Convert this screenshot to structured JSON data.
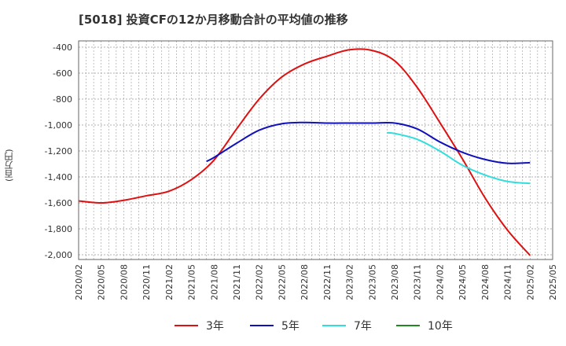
{
  "title": "[5018]  投資CFの12か月移動合計の平均値の推移",
  "ylabel": "(百万円)",
  "colors": {
    "3y": "#dd1111",
    "5y": "#1111bb",
    "7y": "#33dddd",
    "10y": "#228822",
    "grid": "#999999",
    "axis": "#666666"
  },
  "legend": [
    {
      "label": "3年",
      "color": "#dd1111"
    },
    {
      "label": "5年",
      "color": "#1111bb"
    },
    {
      "label": "7年",
      "color": "#33dddd"
    },
    {
      "label": "10年",
      "color": "#228822"
    }
  ],
  "chart_data": {
    "type": "line",
    "title": "[5018]  投資CFの12か月移動合計の平均値の推移",
    "ylabel": "(百万円)",
    "ylim": [
      -2000,
      -400
    ],
    "yticks": [
      -400,
      -600,
      -800,
      -1000,
      -1200,
      -1400,
      -1600,
      -1800,
      -2000
    ],
    "ytick_labels": [
      "-400",
      "-600",
      "-800",
      "-1,000",
      "-1,200",
      "-1,400",
      "-1,600",
      "-1,800",
      "-2,000"
    ],
    "xticks": [
      "2020/02",
      "2020/05",
      "2020/08",
      "2020/11",
      "2021/02",
      "2021/05",
      "2021/08",
      "2021/11",
      "2022/02",
      "2022/05",
      "2022/08",
      "2022/11",
      "2023/02",
      "2023/05",
      "2023/08",
      "2023/11",
      "2024/02",
      "2024/05",
      "2024/08",
      "2024/11",
      "2025/02",
      "2025/05"
    ],
    "grid": true,
    "legend_position": "bottom",
    "series": [
      {
        "name": "3年",
        "color": "#dd1111",
        "x": [
          "2020/02",
          "2020/05",
          "2020/08",
          "2020/11",
          "2021/02",
          "2021/05",
          "2021/08",
          "2021/11",
          "2022/02",
          "2022/05",
          "2022/08",
          "2022/11",
          "2023/02",
          "2023/05",
          "2023/08",
          "2023/11",
          "2024/02",
          "2024/05",
          "2024/08",
          "2024/11",
          "2025/02"
        ],
        "y": [
          -1585,
          -1600,
          -1580,
          -1545,
          -1510,
          -1420,
          -1270,
          -1030,
          -800,
          -630,
          -530,
          -470,
          -420,
          -425,
          -505,
          -710,
          -980,
          -1260,
          -1560,
          -1810,
          -2005
        ]
      },
      {
        "name": "5年",
        "color": "#1111bb",
        "x": [
          "2021/07",
          "2021/08",
          "2021/11",
          "2022/02",
          "2022/05",
          "2022/08",
          "2022/11",
          "2023/02",
          "2023/05",
          "2023/08",
          "2023/11",
          "2024/02",
          "2024/05",
          "2024/08",
          "2024/11",
          "2025/02"
        ],
        "y": [
          -1280,
          -1250,
          -1140,
          -1040,
          -990,
          -980,
          -985,
          -985,
          -985,
          -985,
          -1030,
          -1130,
          -1210,
          -1265,
          -1295,
          -1290
        ]
      },
      {
        "name": "7年",
        "color": "#33dddd",
        "x": [
          "2023/07",
          "2023/08",
          "2023/11",
          "2024/02",
          "2024/05",
          "2024/08",
          "2024/11",
          "2025/02"
        ],
        "y": [
          -1060,
          -1065,
          -1110,
          -1200,
          -1310,
          -1385,
          -1435,
          -1450
        ]
      },
      {
        "name": "10年",
        "color": "#228822",
        "x": [],
        "y": []
      }
    ]
  }
}
